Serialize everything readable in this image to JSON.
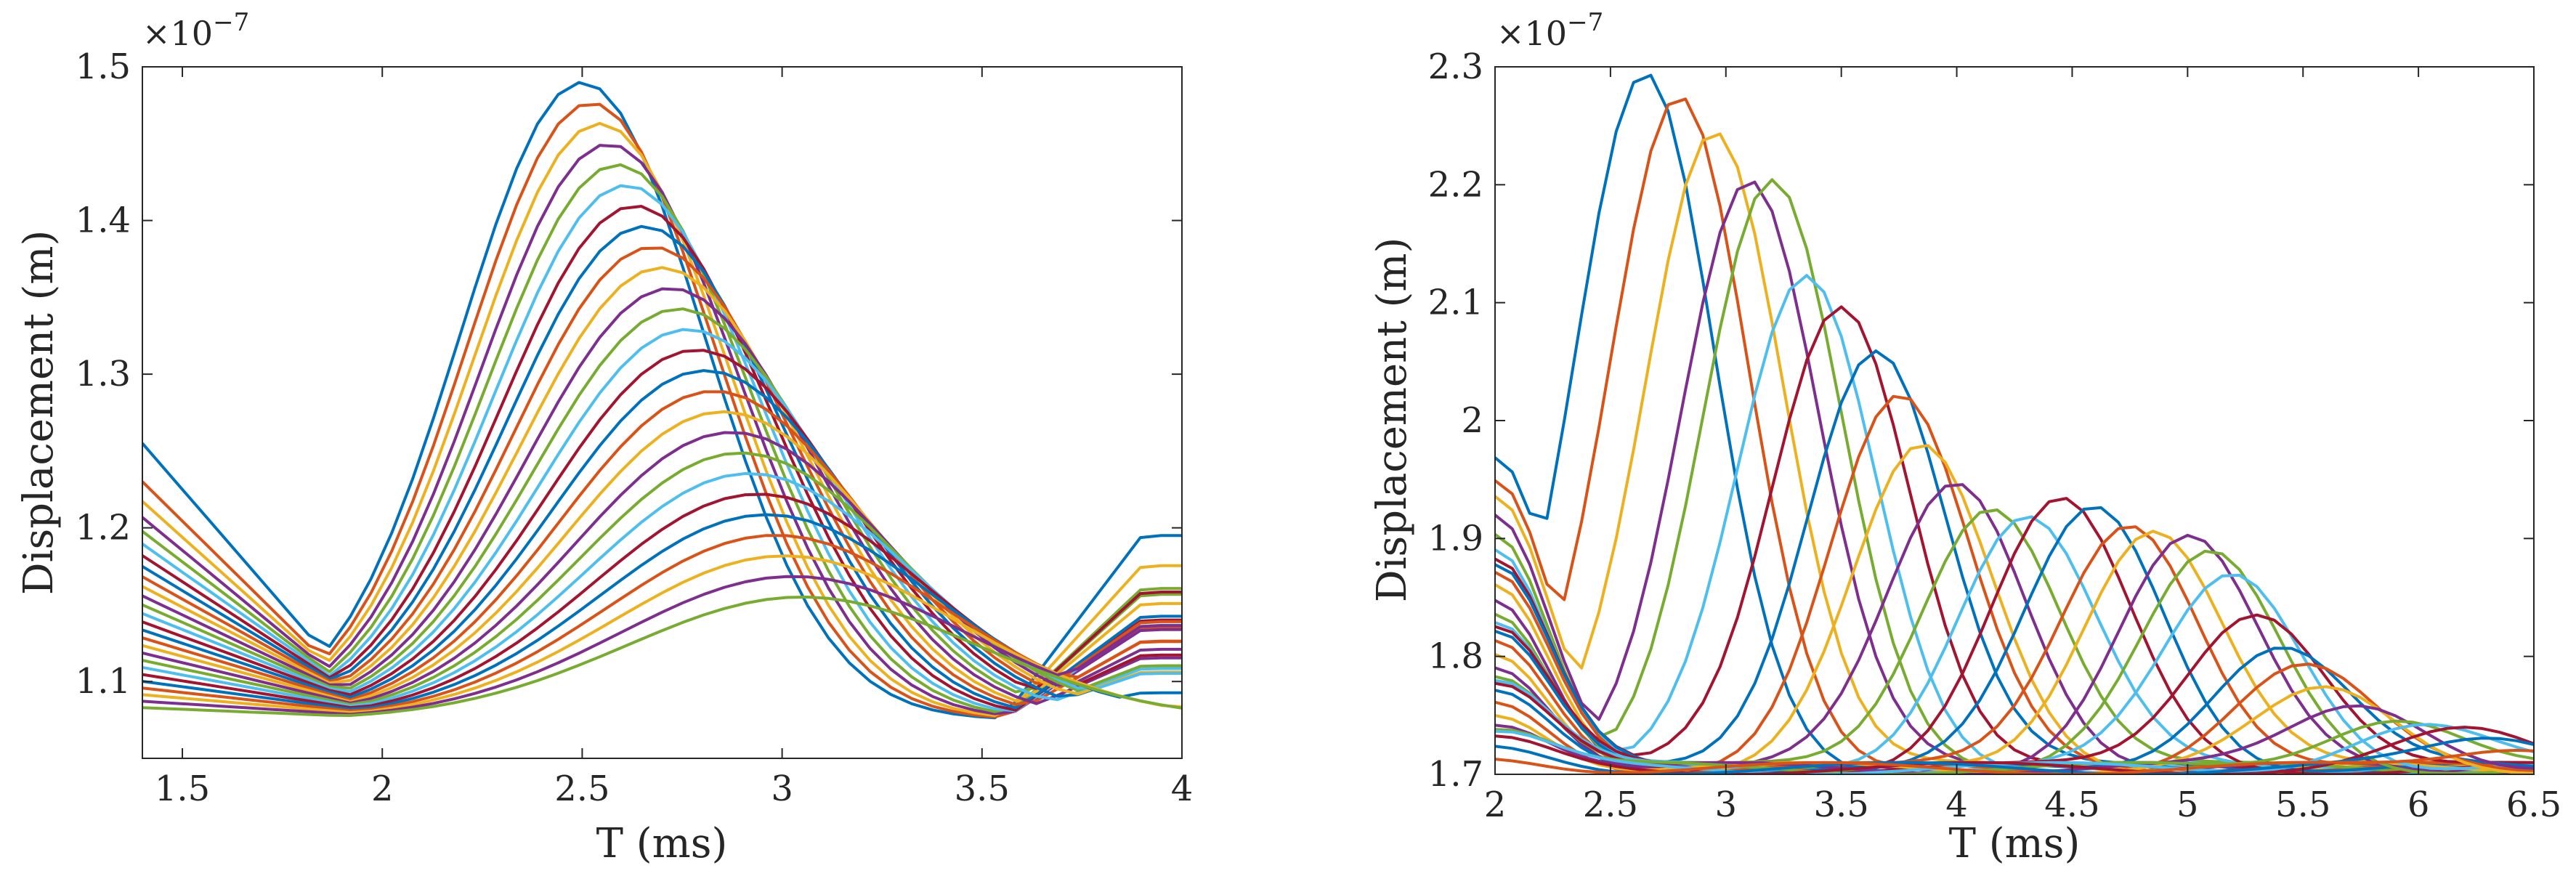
{
  "chart_data": [
    {
      "type": "line",
      "title": "",
      "xlabel": "T (ms)",
      "ylabel": "Displacement (m)",
      "exponent_label": "×10",
      "exponent_power": "−7",
      "xlim": [
        1.4,
        4.0
      ],
      "ylim": [
        1.05,
        1.5
      ],
      "xticks": [
        1.5,
        2,
        2.5,
        3,
        3.5,
        4
      ],
      "xtick_labels": [
        "1.5",
        "2",
        "2.5",
        "3",
        "3.5",
        "4"
      ],
      "yticks": [
        1.1,
        1.2,
        1.3,
        1.4,
        1.5
      ],
      "ytick_labels": [
        "1.1",
        "1.2",
        "1.3",
        "1.4",
        "1.5"
      ],
      "grid": false,
      "series_gen": {
        "count": 26,
        "start_peak": 1.49,
        "end_peak": 1.155,
        "start_center": 2.5,
        "end_center": 3.05,
        "start_width": 0.43,
        "end_width": 0.62,
        "left_base_start": 1.255,
        "left_base_end": 1.083,
        "right_base_start": 1.195,
        "right_base_end": 1.078,
        "tail_x": 3.55
      }
    },
    {
      "type": "line",
      "title": "",
      "xlabel": "T (ms)",
      "ylabel": "Displacement (m)",
      "exponent_label": "×10",
      "exponent_power": "−7",
      "xlim": [
        2.0,
        6.5
      ],
      "ylim": [
        1.7,
        2.3
      ],
      "xticks": [
        2,
        2.5,
        3,
        3.5,
        4,
        4.5,
        5,
        5.5,
        6,
        6.5
      ],
      "xtick_labels": [
        "2",
        "2.5",
        "3",
        "3.5",
        "4",
        "4.5",
        "5",
        "5.5",
        "6",
        "6.5"
      ],
      "yticks": [
        1.7,
        1.8,
        1.9,
        2.0,
        2.1,
        2.2,
        2.3
      ],
      "ytick_labels": [
        "1.7",
        "1.8",
        "1.9",
        "2",
        "2.1",
        "2.2",
        "2.3"
      ],
      "grid": false,
      "series_gen": {
        "count": 30,
        "peaks": [
          [
            2.65,
            2.29
          ],
          [
            2.8,
            2.275
          ],
          [
            2.95,
            2.25
          ],
          [
            3.1,
            2.205
          ],
          [
            3.2,
            2.2
          ],
          [
            3.35,
            2.12
          ],
          [
            3.5,
            2.1
          ],
          [
            3.65,
            2.063
          ],
          [
            3.75,
            2.02
          ],
          [
            3.85,
            1.975
          ],
          [
            4.0,
            1.947
          ],
          [
            4.15,
            1.93
          ],
          [
            4.3,
            1.92
          ],
          [
            4.45,
            1.93
          ],
          [
            4.6,
            1.925
          ],
          [
            4.75,
            1.915
          ],
          [
            4.85,
            1.91
          ],
          [
            5.0,
            1.9
          ],
          [
            5.1,
            1.885
          ],
          [
            5.2,
            1.87
          ],
          [
            5.3,
            1.84
          ],
          [
            5.4,
            1.81
          ],
          [
            5.5,
            1.79
          ],
          [
            5.6,
            1.77
          ],
          [
            5.75,
            1.76
          ],
          [
            5.9,
            1.75
          ],
          [
            6.0,
            1.742
          ],
          [
            6.2,
            1.735
          ],
          [
            6.35,
            1.73
          ],
          [
            6.45,
            1.725
          ]
        ],
        "width": 0.42,
        "start_value_first": 1.97,
        "start_value_last": 1.715,
        "base": 1.705
      }
    }
  ],
  "colors": [
    "#0072BD",
    "#D95319",
    "#EDB120",
    "#7E2F8E",
    "#77AC30",
    "#4DBEEE",
    "#A2142F"
  ]
}
